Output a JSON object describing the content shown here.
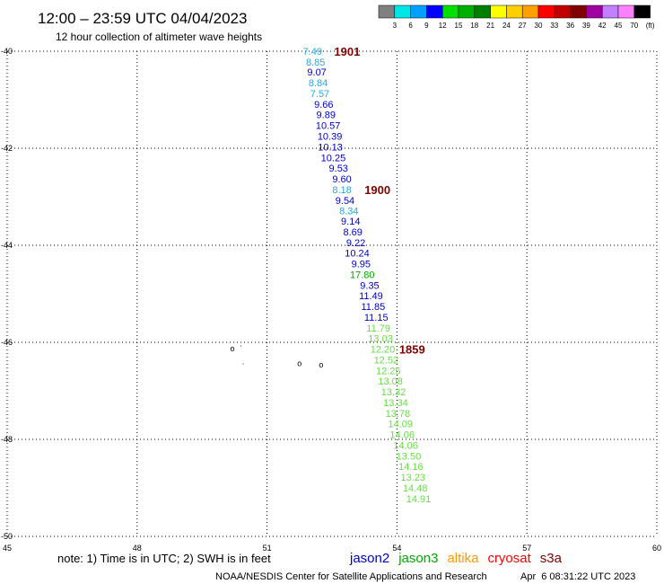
{
  "header": {
    "title": "12:00 – 23:59 UTC 04/04/2023",
    "subtitle": "12 hour collection of altimeter wave heights"
  },
  "legend": {
    "colors": [
      "#808080",
      "#00e5e5",
      "#00a0ff",
      "#0000ff",
      "#00e000",
      "#00b000",
      "#008000",
      "#ffff00",
      "#ffd000",
      "#ffa000",
      "#ff0000",
      "#c00000",
      "#800000",
      "#a000a0",
      "#c080ff",
      "#ff80ff",
      "#000000"
    ],
    "labels": [
      "3",
      "6",
      "9",
      "12",
      "15",
      "18",
      "21",
      "24",
      "27",
      "30",
      "33",
      "36",
      "39",
      "42",
      "45",
      "70",
      "(ft)"
    ]
  },
  "footer": {
    "note": "note:  1) Time is in UTC; 2) SWH is in feet",
    "satellites": [
      {
        "name": "jason2",
        "color": "#0000cc"
      },
      {
        "name": "jason3",
        "color": "#00aa00"
      },
      {
        "name": "altika",
        "color": "#ff9900"
      },
      {
        "name": "cryosat",
        "color": "#ff0000"
      },
      {
        "name": "s3a",
        "color": "#800000"
      }
    ],
    "credit": "NOAA/NESDIS Center for Satellite Applications and Research",
    "timestamp": "Apr  6 08:31:22 UTC 2023"
  },
  "chart_data": {
    "type": "scatter",
    "xlim": [
      45,
      60
    ],
    "ylim": [
      -50,
      -40
    ],
    "x_ticks": [
      "45",
      "48",
      "51",
      "54",
      "57",
      "60"
    ],
    "y_ticks": [
      "-40",
      "-42",
      "-44",
      "-46",
      "-48",
      "-50"
    ],
    "grid": true,
    "points": [
      {
        "x": 52.05,
        "y": -40.0,
        "label": "7.49",
        "color": "#22aadd"
      },
      {
        "x": 52.12,
        "y": -40.22,
        "label": "8.85",
        "color": "#22aadd"
      },
      {
        "x": 52.15,
        "y": -40.43,
        "label": "9.07",
        "color": "#0000cc"
      },
      {
        "x": 52.18,
        "y": -40.65,
        "label": "8.84",
        "color": "#22aadd"
      },
      {
        "x": 52.22,
        "y": -40.87,
        "label": "7.57",
        "color": "#22aadd"
      },
      {
        "x": 52.31,
        "y": -41.09,
        "label": "9.66",
        "color": "#0000cc"
      },
      {
        "x": 52.36,
        "y": -41.31,
        "label": "9.89",
        "color": "#0000cc"
      },
      {
        "x": 52.41,
        "y": -41.53,
        "label": "10.57",
        "color": "#0000cc"
      },
      {
        "x": 52.45,
        "y": -41.75,
        "label": "10.39",
        "color": "#0000cc"
      },
      {
        "x": 52.46,
        "y": -41.97,
        "label": "10.13",
        "color": "#0000cc"
      },
      {
        "x": 52.53,
        "y": -42.19,
        "label": "10.25",
        "color": "#0000cc"
      },
      {
        "x": 52.65,
        "y": -42.41,
        "label": "9.53",
        "color": "#0000cc"
      },
      {
        "x": 52.73,
        "y": -42.63,
        "label": "9.60",
        "color": "#0000cc"
      },
      {
        "x": 52.73,
        "y": -42.85,
        "label": "8.18",
        "color": "#22aadd"
      },
      {
        "x": 52.8,
        "y": -43.07,
        "label": "9.54",
        "color": "#0000cc"
      },
      {
        "x": 52.89,
        "y": -43.29,
        "label": "8.34",
        "color": "#22aadd"
      },
      {
        "x": 52.93,
        "y": -43.5,
        "label": "9.14",
        "color": "#0000cc"
      },
      {
        "x": 52.98,
        "y": -43.72,
        "label": "8.69",
        "color": "#0000cc"
      },
      {
        "x": 53.05,
        "y": -43.94,
        "label": "9.22",
        "color": "#0000cc"
      },
      {
        "x": 53.08,
        "y": -44.16,
        "label": "10.24",
        "color": "#0000cc"
      },
      {
        "x": 53.17,
        "y": -44.38,
        "label": "9.95",
        "color": "#0000cc"
      },
      {
        "x": 53.2,
        "y": -44.6,
        "label": "17.80",
        "color": "#00aa00"
      },
      {
        "x": 53.37,
        "y": -44.82,
        "label": "9.35",
        "color": "#0000cc"
      },
      {
        "x": 53.4,
        "y": -45.04,
        "label": "11.49",
        "color": "#0000cc"
      },
      {
        "x": 53.45,
        "y": -45.26,
        "label": "11.85",
        "color": "#0000cc"
      },
      {
        "x": 53.52,
        "y": -45.48,
        "label": "11.15",
        "color": "#0000cc"
      },
      {
        "x": 53.57,
        "y": -45.7,
        "label": "11.79",
        "color": "#66dd44"
      },
      {
        "x": 53.62,
        "y": -45.92,
        "label": "13.03",
        "color": "#66dd44"
      },
      {
        "x": 53.67,
        "y": -46.14,
        "label": "12.20",
        "color": "#66dd44"
      },
      {
        "x": 53.75,
        "y": -46.36,
        "label": "12.52",
        "color": "#66dd44"
      },
      {
        "x": 53.8,
        "y": -46.58,
        "label": "12.25",
        "color": "#66dd44"
      },
      {
        "x": 53.85,
        "y": -46.8,
        "label": "13.08",
        "color": "#66dd44"
      },
      {
        "x": 53.92,
        "y": -47.02,
        "label": "13.32",
        "color": "#66dd44"
      },
      {
        "x": 53.97,
        "y": -47.24,
        "label": "13.34",
        "color": "#66dd44"
      },
      {
        "x": 54.02,
        "y": -47.46,
        "label": "13.78",
        "color": "#66dd44"
      },
      {
        "x": 54.08,
        "y": -47.68,
        "label": "14.09",
        "color": "#66dd44"
      },
      {
        "x": 54.12,
        "y": -47.9,
        "label": "14.06",
        "color": "#66dd44"
      },
      {
        "x": 54.2,
        "y": -48.12,
        "label": "14.06",
        "color": "#66dd44"
      },
      {
        "x": 54.27,
        "y": -48.34,
        "label": "13.50",
        "color": "#66dd44"
      },
      {
        "x": 54.32,
        "y": -48.56,
        "label": "14.16",
        "color": "#66dd44"
      },
      {
        "x": 54.37,
        "y": -48.78,
        "label": "13.23",
        "color": "#66dd44"
      },
      {
        "x": 54.42,
        "y": -49.0,
        "label": "14.48",
        "color": "#66dd44"
      },
      {
        "x": 54.5,
        "y": -49.22,
        "label": "14.91",
        "color": "#66dd44"
      }
    ],
    "annotations": [
      {
        "x": 52.55,
        "y": -40.0,
        "label": "1901"
      },
      {
        "x": 53.25,
        "y": -42.85,
        "label": "1900"
      },
      {
        "x": 54.05,
        "y": -46.14,
        "label": "1859"
      }
    ],
    "land_marks": [
      {
        "x": 50.2,
        "y": -46.11,
        "symbol": "o"
      },
      {
        "x": 50.4,
        "y": -46.05,
        "symbol": "·"
      },
      {
        "x": 50.45,
        "y": -46.42,
        "symbol": "·"
      },
      {
        "x": 51.75,
        "y": -46.42,
        "symbol": "o"
      },
      {
        "x": 52.25,
        "y": -46.44,
        "symbol": "o"
      }
    ]
  }
}
